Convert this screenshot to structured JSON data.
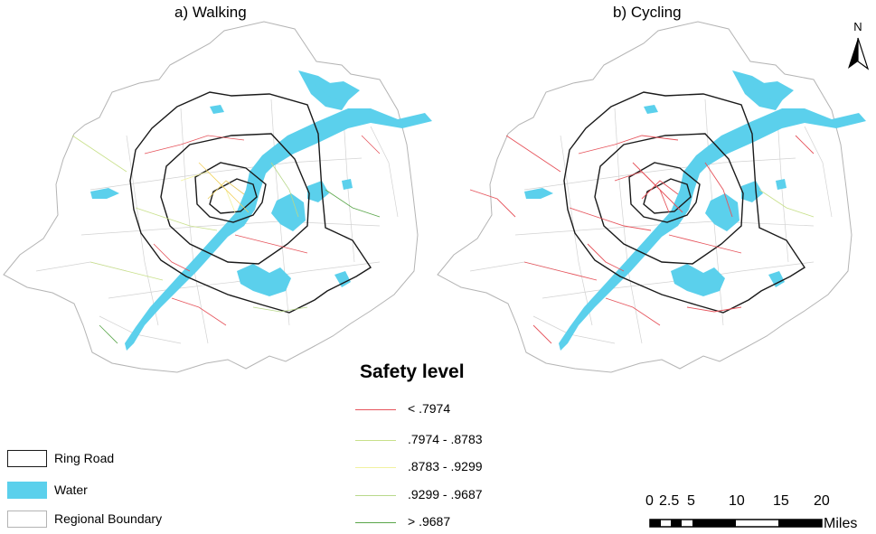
{
  "panels": [
    {
      "title": "a) Walking"
    },
    {
      "title": "b) Cycling"
    }
  ],
  "north_arrow": {
    "label": "N",
    "icon": "north-arrow-icon"
  },
  "safety_legend": {
    "title": "Safety level",
    "classes": [
      {
        "label": "< .7974",
        "color": "#e6545c"
      },
      {
        "label": ".7974 - .8783",
        "color": "#c8e08a"
      },
      {
        "label": ".8783 - .9299",
        "color": "#f2f2a0"
      },
      {
        "label": ".9299 - .9687",
        "color": "#b8d88a"
      },
      {
        "label": "> .9687",
        "color": "#5aa64a"
      }
    ]
  },
  "map_legend": [
    {
      "label": "Ring Road",
      "style": "outline",
      "color": "#000000"
    },
    {
      "label": "Water",
      "style": "fill",
      "color": "#5bd0ec"
    },
    {
      "label": "Regional Boundary",
      "style": "outline",
      "color": "#b0b0b0"
    }
  ],
  "scale_bar": {
    "ticks": [
      "0",
      "2.5",
      "5",
      "10",
      "15",
      "20"
    ],
    "units": "Miles"
  },
  "colors": {
    "water": "#5bd0ec",
    "ring_road": "#1a1a1a",
    "boundary": "#b4b4b4",
    "minor_roads": "#cfcfcf"
  }
}
